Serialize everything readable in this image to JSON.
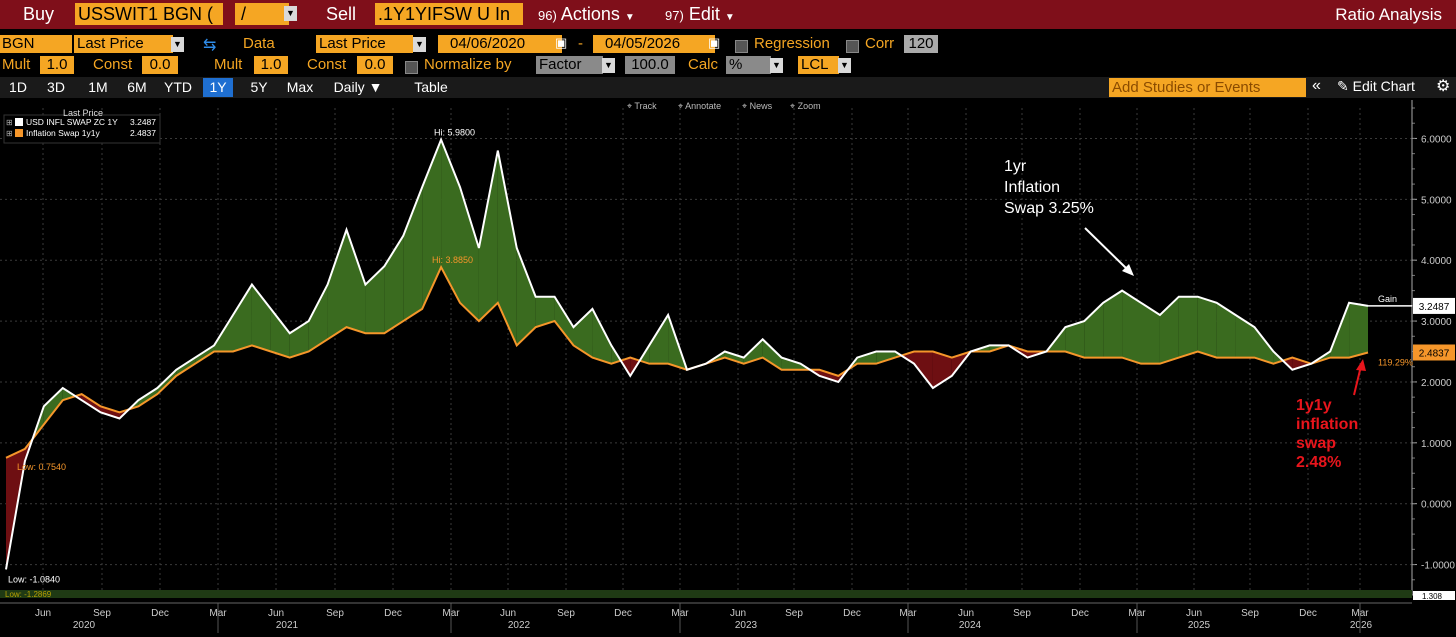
{
  "toolbar": {
    "buy_label": "Buy",
    "ticker1": "USSWIT1 BGN (",
    "op": "/",
    "sell_label": "Sell",
    "ticker2": ".1Y1YIFSW U In",
    "actions_num": "96)",
    "actions_label": "Actions",
    "edit_num": "97)",
    "edit_label": "Edit",
    "title": "Ratio Analysis"
  },
  "row2": {
    "source": "BGN",
    "field1": "Last Price",
    "data_label": "Data",
    "field2": "Last Price",
    "start_date": "04/06/2020",
    "dash": "-",
    "end_date": "04/05/2026",
    "regression_label": "Regression",
    "corr_label": "Corr",
    "corr_value": "120"
  },
  "row3": {
    "mult_label": "Mult",
    "mult1": "1.0",
    "const_label": "Const",
    "const1": "0.0",
    "mult2": "1.0",
    "const2": "0.0",
    "normalize_label": "Normalize by",
    "normalize_value": "Factor",
    "factor_value": "100.0",
    "calc_label": "Calc",
    "calc_value": "%",
    "currency": "LCL"
  },
  "tabs": [
    "1D",
    "3D",
    "1M",
    "6M",
    "YTD",
    "1Y",
    "5Y",
    "Max",
    "Daily ▼",
    "Table"
  ],
  "active_tab": "1Y",
  "studies_placeholder": "Add Studies or Events",
  "edit_chart_label": "Edit Chart",
  "chart_tools": [
    "Track",
    "Annotate",
    "News",
    "Zoom"
  ],
  "legend": {
    "title": "Last Price",
    "items": [
      {
        "name": "USD INFL SWAP ZC 1Y",
        "value": "3.2487",
        "color": "#ffffff"
      },
      {
        "name": "Inflation Swap 1y1y",
        "value": "2.4837",
        "color": "#f5962a"
      }
    ]
  },
  "annotations": {
    "white_hi": "Hi: 5.9800",
    "orange_hi": "Hi: 3.8850",
    "orange_low": "Low: 0.7540",
    "white_low": "Low: -1.0840",
    "gain": "Gain",
    "ratio": "119.29%",
    "ratio_low": "Low: -1.2869",
    "ratio_last": "1.308",
    "note_white": [
      "1yr",
      "Inflation",
      "Swap 3.25%"
    ],
    "note_red": [
      "1y1y",
      "inflation",
      "swap",
      "2.48%"
    ]
  },
  "colors": {
    "white_series": "#ffffff",
    "orange_series": "#f5962a",
    "gain_fill": "#3a6b1f",
    "loss_fill": "#6e0f12",
    "red_note": "#e8151c"
  },
  "chart_data": {
    "type": "line",
    "title": "",
    "xlabel": "",
    "ylabel": "",
    "x_ticks": [
      "Jun",
      "Sep",
      "Dec",
      "Mar",
      "Jun",
      "Sep",
      "Dec",
      "Mar",
      "Jun",
      "Sep",
      "Dec",
      "Mar",
      "Jun",
      "Sep",
      "Dec",
      "Mar",
      "Jun",
      "Sep",
      "Dec",
      "Mar",
      "Jun",
      "Sep",
      "Dec",
      "Mar"
    ],
    "years": [
      "2020",
      "2021",
      "2022",
      "2023",
      "2024",
      "2025",
      "2026"
    ],
    "y_ticks": [
      "6.0000",
      "5.0000",
      "4.0000",
      "3.0000",
      "2.0000",
      "1.0000",
      "0.0000",
      "-1.0000"
    ],
    "ylim": [
      -1.5,
      6.5
    ],
    "x": [
      "2020-04",
      "2020-05",
      "2020-06",
      "2020-07",
      "2020-08",
      "2020-09",
      "2020-10",
      "2020-11",
      "2020-12",
      "2021-01",
      "2021-02",
      "2021-03",
      "2021-04",
      "2021-05",
      "2021-06",
      "2021-07",
      "2021-08",
      "2021-09",
      "2021-10",
      "2021-11",
      "2021-12",
      "2022-01",
      "2022-02",
      "2022-03",
      "2022-04",
      "2022-05",
      "2022-06",
      "2022-07",
      "2022-08",
      "2022-09",
      "2022-10",
      "2022-11",
      "2022-12",
      "2023-01",
      "2023-02",
      "2023-03",
      "2023-04",
      "2023-05",
      "2023-06",
      "2023-07",
      "2023-08",
      "2023-09",
      "2023-10",
      "2023-11",
      "2023-12",
      "2024-01",
      "2024-02",
      "2024-03",
      "2024-04",
      "2024-05",
      "2024-06",
      "2024-07",
      "2024-08",
      "2024-09",
      "2024-10",
      "2024-11",
      "2024-12",
      "2025-01",
      "2025-02",
      "2025-03",
      "2025-04",
      "2025-05",
      "2025-06",
      "2025-07",
      "2025-08",
      "2025-09",
      "2025-10",
      "2025-11",
      "2025-12",
      "2026-01",
      "2026-02",
      "2026-03",
      "2026-04"
    ],
    "series": [
      {
        "name": "USD INFL SWAP ZC 1Y",
        "values": [
          -1.08,
          0.7,
          1.6,
          1.9,
          1.7,
          1.5,
          1.4,
          1.7,
          1.9,
          2.2,
          2.4,
          2.6,
          3.1,
          3.6,
          3.2,
          2.8,
          3.0,
          3.6,
          4.5,
          3.6,
          3.9,
          4.4,
          5.2,
          5.98,
          5.2,
          4.2,
          5.8,
          4.2,
          3.4,
          3.4,
          2.9,
          3.2,
          2.6,
          2.1,
          2.6,
          3.1,
          2.2,
          2.3,
          2.5,
          2.4,
          2.7,
          2.4,
          2.3,
          2.1,
          2.0,
          2.4,
          2.5,
          2.5,
          2.3,
          1.9,
          2.1,
          2.5,
          2.6,
          2.6,
          2.4,
          2.5,
          2.9,
          3.0,
          3.3,
          3.5,
          3.3,
          3.1,
          3.4,
          3.4,
          3.3,
          3.1,
          2.9,
          2.5,
          2.2,
          2.3,
          2.5,
          3.3,
          3.2487
        ]
      },
      {
        "name": "Inflation Swap 1y1y",
        "values": [
          0.754,
          0.9,
          1.3,
          1.7,
          1.8,
          1.6,
          1.5,
          1.6,
          1.8,
          2.1,
          2.3,
          2.5,
          2.5,
          2.6,
          2.5,
          2.4,
          2.5,
          2.7,
          2.9,
          2.8,
          2.8,
          3.0,
          3.2,
          3.885,
          3.3,
          3.0,
          3.3,
          2.6,
          2.9,
          3.0,
          2.6,
          2.4,
          2.3,
          2.4,
          2.3,
          2.3,
          2.2,
          2.3,
          2.4,
          2.3,
          2.4,
          2.2,
          2.2,
          2.2,
          2.1,
          2.3,
          2.3,
          2.4,
          2.5,
          2.5,
          2.4,
          2.5,
          2.5,
          2.6,
          2.5,
          2.5,
          2.5,
          2.4,
          2.4,
          2.4,
          2.3,
          2.3,
          2.4,
          2.5,
          2.4,
          2.4,
          2.4,
          2.3,
          2.4,
          2.3,
          2.4,
          2.4,
          2.4837
        ]
      }
    ]
  }
}
